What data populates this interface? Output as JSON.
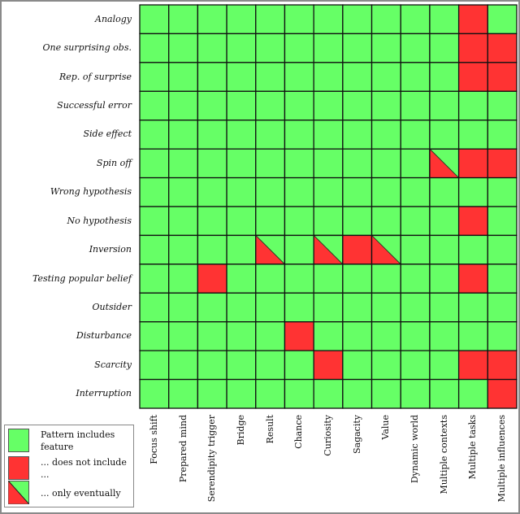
{
  "colors": {
    "includes": "#66ff66",
    "not_included": "#ff3333",
    "grid_line": "#111111"
  },
  "chart_data": {
    "type": "heatmap",
    "rows": [
      "Analogy",
      "One surprising obs.",
      "Rep. of surprise",
      "Successful error",
      "Side effect",
      "Spin off",
      "Wrong hypothesis",
      "No hypothesis",
      "Inversion",
      "Testing popular belief",
      "Outsider",
      "Disturbance",
      "Scarcity",
      "Interruption"
    ],
    "columns": [
      "Focus shift",
      "Prepared mind",
      "Serendipity trigger",
      "Bridge",
      "Result",
      "Chance",
      "Curiosity",
      "Sagacity",
      "Value",
      "Dynamic world",
      "Multiple contexts",
      "Multiple tasks",
      "Multiple influences"
    ],
    "value_codes": {
      "Y": "Pattern includes feature",
      "N": "... does not include ...",
      "E": "... only eventually"
    },
    "values": [
      [
        "Y",
        "Y",
        "Y",
        "Y",
        "Y",
        "Y",
        "Y",
        "Y",
        "Y",
        "Y",
        "Y",
        "N",
        "Y"
      ],
      [
        "Y",
        "Y",
        "Y",
        "Y",
        "Y",
        "Y",
        "Y",
        "Y",
        "Y",
        "Y",
        "Y",
        "N",
        "N"
      ],
      [
        "Y",
        "Y",
        "Y",
        "Y",
        "Y",
        "Y",
        "Y",
        "Y",
        "Y",
        "Y",
        "Y",
        "N",
        "N"
      ],
      [
        "Y",
        "Y",
        "Y",
        "Y",
        "Y",
        "Y",
        "Y",
        "Y",
        "Y",
        "Y",
        "Y",
        "Y",
        "Y"
      ],
      [
        "Y",
        "Y",
        "Y",
        "Y",
        "Y",
        "Y",
        "Y",
        "Y",
        "Y",
        "Y",
        "Y",
        "Y",
        "Y"
      ],
      [
        "Y",
        "Y",
        "Y",
        "Y",
        "Y",
        "Y",
        "Y",
        "Y",
        "Y",
        "Y",
        "E",
        "N",
        "N"
      ],
      [
        "Y",
        "Y",
        "Y",
        "Y",
        "Y",
        "Y",
        "Y",
        "Y",
        "Y",
        "Y",
        "Y",
        "Y",
        "Y"
      ],
      [
        "Y",
        "Y",
        "Y",
        "Y",
        "Y",
        "Y",
        "Y",
        "Y",
        "Y",
        "Y",
        "Y",
        "N",
        "Y"
      ],
      [
        "Y",
        "Y",
        "Y",
        "Y",
        "E",
        "Y",
        "E",
        "N",
        "E",
        "Y",
        "Y",
        "Y",
        "Y"
      ],
      [
        "Y",
        "Y",
        "N",
        "Y",
        "Y",
        "Y",
        "Y",
        "Y",
        "Y",
        "Y",
        "Y",
        "N",
        "Y"
      ],
      [
        "Y",
        "Y",
        "Y",
        "Y",
        "Y",
        "Y",
        "Y",
        "Y",
        "Y",
        "Y",
        "Y",
        "Y",
        "Y"
      ],
      [
        "Y",
        "Y",
        "Y",
        "Y",
        "Y",
        "N",
        "Y",
        "Y",
        "Y",
        "Y",
        "Y",
        "Y",
        "Y"
      ],
      [
        "Y",
        "Y",
        "Y",
        "Y",
        "Y",
        "Y",
        "N",
        "Y",
        "Y",
        "Y",
        "Y",
        "N",
        "N"
      ],
      [
        "Y",
        "Y",
        "Y",
        "Y",
        "Y",
        "Y",
        "Y",
        "Y",
        "Y",
        "Y",
        "Y",
        "Y",
        "N"
      ]
    ],
    "legend": {
      "placement": "bottom-left",
      "items": [
        {
          "code": "Y",
          "label": "Pattern includes feature"
        },
        {
          "code": "N",
          "label": "... does not include ..."
        },
        {
          "code": "E",
          "label": "... only eventually"
        }
      ]
    }
  }
}
